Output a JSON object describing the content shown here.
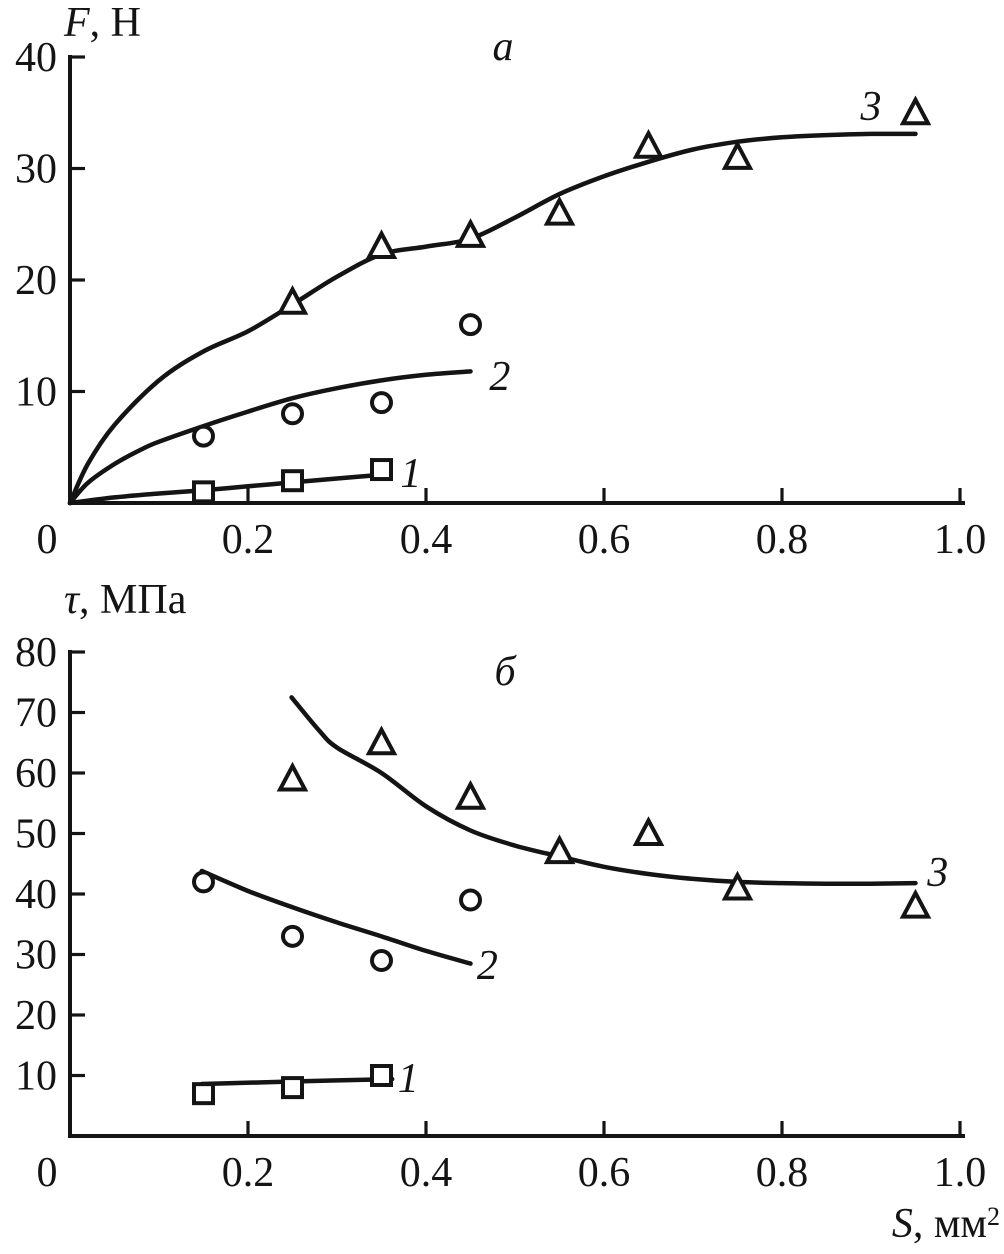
{
  "figure": {
    "background": "#ffffff",
    "ink": "#141414"
  },
  "labels": {
    "panel_a": "а",
    "panel_b": "б",
    "panel_a_y_var": "F",
    "panel_a_y_unit": ", Н",
    "panel_b_y_var": "τ",
    "panel_b_y_unit": ", МПа",
    "x_var": "S",
    "x_unit": ", мм",
    "x_unit_sup": "2"
  },
  "chart_data": [
    {
      "type": "scatter",
      "panel_label": "а",
      "ylabel": "F, Н",
      "xlabel": "S, мм²",
      "xlim": [
        0,
        1.0
      ],
      "ylim": [
        0,
        40
      ],
      "grid": false,
      "origin_label": "0",
      "xtick_values": [
        0.2,
        0.4,
        0.6,
        0.8,
        1.0
      ],
      "xtick_labels": [
        "0.2",
        "0.4",
        "0.6",
        "0.8",
        "1.0"
      ],
      "ytick_values": [
        10,
        20,
        30,
        40
      ],
      "ytick_labels": [
        "10",
        "20",
        "30",
        "40"
      ],
      "legend": "inline italic numerals near each fitted curve",
      "series": [
        {
          "name": "1",
          "marker": "square",
          "points": [
            [
              0.15,
              1
            ],
            [
              0.25,
              2
            ],
            [
              0.35,
              3
            ]
          ],
          "curve": [
            [
              0,
              0
            ],
            [
              0.05,
              0.5
            ],
            [
              0.1,
              0.85
            ],
            [
              0.15,
              1.15
            ],
            [
              0.2,
              1.5
            ],
            [
              0.25,
              1.85
            ],
            [
              0.3,
              2.2
            ],
            [
              0.36,
              2.6
            ]
          ],
          "label_at": [
            0.383,
            2.7
          ]
        },
        {
          "name": "2",
          "marker": "circle",
          "points": [
            [
              0.15,
              6
            ],
            [
              0.25,
              8
            ],
            [
              0.35,
              9
            ],
            [
              0.45,
              16
            ]
          ],
          "curve": [
            [
              0,
              0
            ],
            [
              0.02,
              1.8
            ],
            [
              0.05,
              3.5
            ],
            [
              0.08,
              4.8
            ],
            [
              0.1,
              5.5
            ],
            [
              0.15,
              6.9
            ],
            [
              0.2,
              8.2
            ],
            [
              0.25,
              9.4
            ],
            [
              0.3,
              10.3
            ],
            [
              0.35,
              11.0
            ],
            [
              0.4,
              11.5
            ],
            [
              0.45,
              11.8
            ]
          ],
          "label_at": [
            0.483,
            11.4
          ]
        },
        {
          "name": "3",
          "marker": "triangle",
          "points": [
            [
              0.25,
              18
            ],
            [
              0.35,
              23
            ],
            [
              0.45,
              24
            ],
            [
              0.55,
              26
            ],
            [
              0.65,
              32
            ],
            [
              0.75,
              31
            ],
            [
              0.95,
              35
            ]
          ],
          "curve": [
            [
              0,
              0
            ],
            [
              0.02,
              3.5
            ],
            [
              0.05,
              7
            ],
            [
              0.1,
              11
            ],
            [
              0.15,
              13.6
            ],
            [
              0.2,
              15.4
            ],
            [
              0.25,
              17.8
            ],
            [
              0.3,
              20.3
            ],
            [
              0.35,
              22.3
            ],
            [
              0.4,
              23.0
            ],
            [
              0.45,
              23.7
            ],
            [
              0.5,
              25.6
            ],
            [
              0.55,
              27.7
            ],
            [
              0.6,
              29.3
            ],
            [
              0.65,
              30.6
            ],
            [
              0.7,
              31.7
            ],
            [
              0.75,
              32.4
            ],
            [
              0.8,
              32.8
            ],
            [
              0.85,
              33.0
            ],
            [
              0.9,
              33.1
            ],
            [
              0.95,
              33.1
            ]
          ],
          "label_at": [
            0.9,
            35.6
          ]
        }
      ]
    },
    {
      "type": "scatter",
      "panel_label": "б",
      "ylabel": "τ, МПа",
      "xlabel": "S, мм²",
      "xlim": [
        0,
        1.0
      ],
      "ylim": [
        0,
        80
      ],
      "grid": false,
      "origin_label": "0",
      "xtick_values": [
        0.2,
        0.4,
        0.6,
        0.8,
        1.0
      ],
      "xtick_labels": [
        "0.2",
        "0.4",
        "0.6",
        "0.8",
        "1.0"
      ],
      "ytick_values": [
        10,
        20,
        30,
        40,
        50,
        60,
        70,
        80
      ],
      "ytick_labels": [
        "10",
        "20",
        "30",
        "40",
        "50",
        "60",
        "70",
        "80"
      ],
      "legend": "inline italic numerals near each fitted curve",
      "series": [
        {
          "name": "1",
          "marker": "square",
          "points": [
            [
              0.15,
              7
            ],
            [
              0.25,
              8
            ],
            [
              0.35,
              10
            ]
          ],
          "curve": [
            [
              0.148,
              8.6
            ],
            [
              0.25,
              9.0
            ],
            [
              0.362,
              9.4
            ]
          ],
          "label_at": [
            0.38,
            9.6
          ]
        },
        {
          "name": "2",
          "marker": "circle",
          "points": [
            [
              0.15,
              42
            ],
            [
              0.25,
              33
            ],
            [
              0.35,
              29
            ],
            [
              0.45,
              39
            ]
          ],
          "curve": [
            [
              0.148,
              43.8
            ],
            [
              0.2,
              40.5
            ],
            [
              0.25,
              37.8
            ],
            [
              0.3,
              35.3
            ],
            [
              0.35,
              33.0
            ],
            [
              0.4,
              30.6
            ],
            [
              0.45,
              28.5
            ]
          ],
          "label_at": [
            0.469,
            28.3
          ]
        },
        {
          "name": "3",
          "marker": "triangle",
          "points": [
            [
              0.25,
              59
            ],
            [
              0.35,
              65
            ],
            [
              0.45,
              56
            ],
            [
              0.55,
              47
            ],
            [
              0.65,
              50
            ],
            [
              0.75,
              41
            ],
            [
              0.95,
              38
            ]
          ],
          "curve": [
            [
              0.249,
              72.5
            ],
            [
              0.28,
              67.0
            ],
            [
              0.3,
              64.2
            ],
            [
              0.35,
              60.0
            ],
            [
              0.4,
              54.5
            ],
            [
              0.45,
              50.5
            ],
            [
              0.5,
              48.0
            ],
            [
              0.55,
              46.2
            ],
            [
              0.6,
              44.5
            ],
            [
              0.65,
              43.3
            ],
            [
              0.7,
              42.5
            ],
            [
              0.75,
              42.0
            ],
            [
              0.8,
              41.8
            ],
            [
              0.85,
              41.7
            ],
            [
              0.9,
              41.7
            ],
            [
              0.95,
              41.8
            ]
          ],
          "label_at": [
            0.975,
            43.6
          ]
        }
      ]
    }
  ]
}
